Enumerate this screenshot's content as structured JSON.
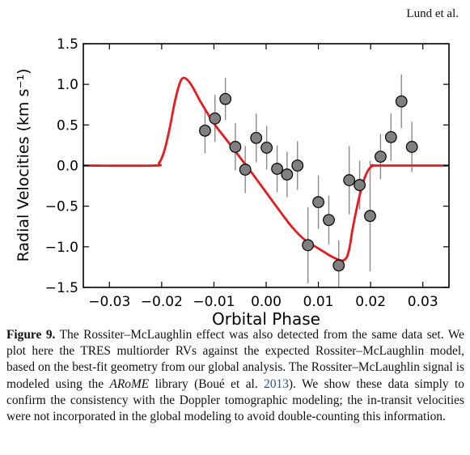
{
  "header": {
    "text": "Lund et al."
  },
  "chart_data": {
    "type": "scatter",
    "xlabel": "Orbital Phase",
    "ylabel": "Radial Velocities (km s⁻¹)",
    "xlim": [
      -0.035,
      0.035
    ],
    "ylim": [
      -1.5,
      1.5
    ],
    "xticks": [
      -0.03,
      -0.02,
      -0.01,
      0.0,
      0.01,
      0.02,
      0.03
    ],
    "xtick_labels": [
      "−0.03",
      "−0.02",
      "−0.01",
      "0.00",
      "0.01",
      "0.02",
      "0.03"
    ],
    "yticks": [
      -1.5,
      -1.0,
      -0.5,
      0.0,
      0.5,
      1.0,
      1.5
    ],
    "ytick_labels": [
      "−1.5",
      "−1.0",
      "−0.5",
      "0.0",
      "0.5",
      "1.0",
      "1.5"
    ],
    "grid": false,
    "series": [
      {
        "kind": "points_with_errorbars",
        "color": "#808080",
        "x": [
          -0.0117,
          -0.0098,
          -0.0078,
          -0.0059,
          -0.004,
          -0.0019,
          0.0001,
          0.0021,
          0.004,
          0.006,
          0.008,
          0.01,
          0.012,
          0.0139,
          0.0159,
          0.0179,
          0.0199,
          0.0219,
          0.0239,
          0.0259,
          0.0279
        ],
        "y": [
          0.43,
          0.58,
          0.82,
          0.23,
          -0.05,
          0.34,
          0.22,
          -0.04,
          -0.11,
          0.0,
          -0.98,
          -0.45,
          -0.67,
          -1.23,
          -0.18,
          -0.24,
          -0.62,
          0.11,
          0.35,
          0.79,
          0.23
        ],
        "yerr": [
          0.28,
          0.29,
          0.26,
          0.29,
          0.29,
          0.3,
          0.27,
          0.29,
          0.28,
          0.3,
          0.47,
          0.33,
          0.3,
          0.31,
          0.42,
          0.3,
          0.68,
          0.28,
          0.29,
          0.33,
          0.31
        ]
      },
      {
        "kind": "model_line",
        "color": "#e8191f",
        "x": [
          -0.035,
          -0.0215,
          -0.0205,
          -0.0195,
          -0.0185,
          -0.0175,
          -0.0165,
          -0.0158,
          -0.015,
          -0.0143,
          -0.0135,
          -0.0125,
          -0.01,
          -0.0075,
          -0.005,
          -0.0025,
          0.0,
          0.0025,
          0.005,
          0.0075,
          0.01,
          0.012,
          0.0135,
          0.0145,
          0.015,
          0.0155,
          0.016,
          0.0165,
          0.0175,
          0.0185,
          0.0195,
          0.0205,
          0.0215,
          0.035
        ],
        "y": [
          0.0,
          0.0,
          0.03,
          0.18,
          0.45,
          0.78,
          1.02,
          1.08,
          1.05,
          0.99,
          0.9,
          0.78,
          0.52,
          0.31,
          0.1,
          -0.11,
          -0.33,
          -0.55,
          -0.76,
          -0.92,
          -1.02,
          -1.1,
          -1.15,
          -1.17,
          -1.16,
          -1.12,
          -1.0,
          -0.8,
          -0.48,
          -0.22,
          -0.06,
          0.0,
          0.0,
          0.0
        ]
      }
    ]
  },
  "caption": {
    "fig_label": "Figure 9.",
    "part1": "The Rossiter–McLaughlin effect was also detected from the same data set. We plot here the TRES multiorder RVs against the expected Rossiter–McLaughlin model, based on the best-fit geometry from our global analysis. The Rossiter–McLaughlin signal is modeled using the ",
    "italic": "ARoME",
    "part2": " library (Boué et al. ",
    "cite_year": "2013",
    "part3": "). We show these data simply to confirm the consistency with the Doppler tomographic modeling; the in-transit velocities were not incorporated in the global modeling to avoid double-counting this information."
  }
}
